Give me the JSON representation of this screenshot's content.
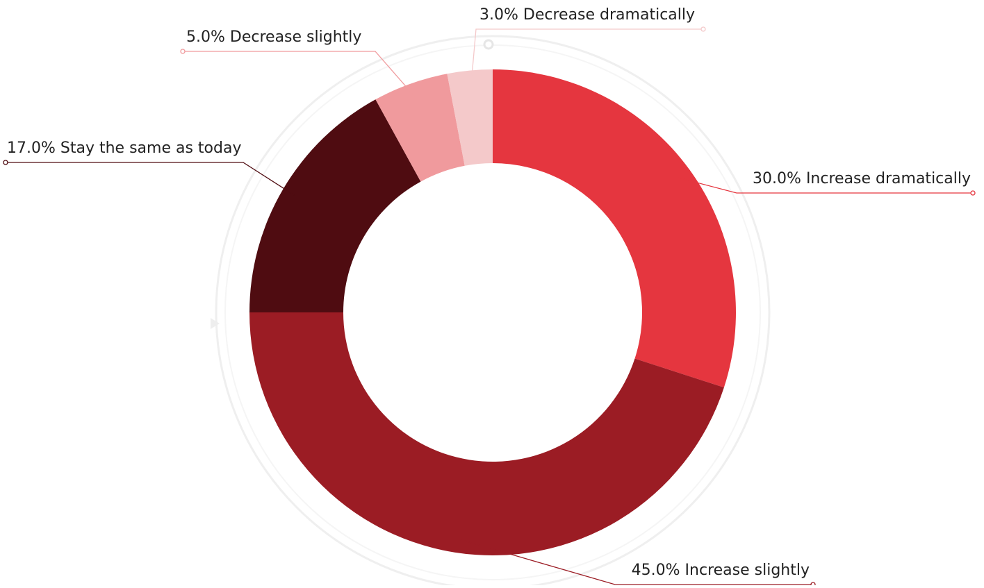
{
  "chart_data": {
    "type": "donut",
    "categories": [
      "Increase dramatically",
      "Increase slightly",
      "Stay the same as today",
      "Decrease slightly",
      "Decrease dramatically"
    ],
    "values": [
      30,
      45,
      17,
      5,
      3
    ],
    "value_labels": [
      "30.0%",
      "45.0%",
      "17.0%",
      "5.0%",
      "3.0%"
    ],
    "colors": [
      "#e5363f",
      "#9b1c24",
      "#4f0c11",
      "#f09a9d",
      "#f4c9ca"
    ]
  }
}
